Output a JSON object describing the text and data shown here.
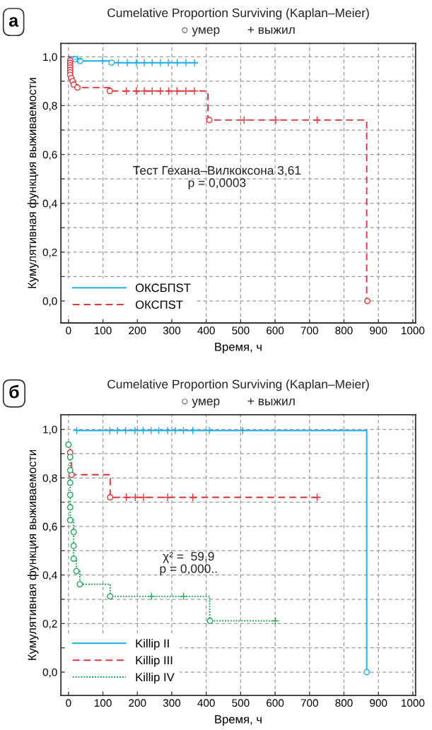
{
  "chart_data": [
    {
      "type": "step",
      "title": "Cumelative Proportion Surviving (Kaplan–Meier)",
      "subtitle": "○ умер        + выжил",
      "xlabel": "Время, ч",
      "ylabel": "Кумулятивная функция выживаемости",
      "annotations": [
        "а",
        "Тест Гехана–Вилкоксона 3,61\np = 0,0003"
      ],
      "xlim": [
        -22,
        1008
      ],
      "ylim": [
        -0.09,
        1.055
      ],
      "xticks": [
        0,
        100,
        200,
        300,
        400,
        500,
        600,
        700,
        800,
        900,
        1000
      ],
      "yticks": [
        {
          "value": 0.0,
          "label": "0,0"
        },
        {
          "value": 0.1,
          "label": null
        },
        {
          "value": 0.2,
          "label": "0,2"
        },
        {
          "value": 0.3,
          "label": null
        },
        {
          "value": 0.4,
          "label": "0,4"
        },
        {
          "value": 0.5,
          "label": null
        },
        {
          "value": 0.6,
          "label": "0,6"
        },
        {
          "value": 0.7,
          "label": null
        },
        {
          "value": 0.8,
          "label": "0,8"
        },
        {
          "value": 0.9,
          "label": null
        },
        {
          "value": 1.0,
          "label": "1,0"
        }
      ],
      "grid": true,
      "legend": "bottom left",
      "series": [
        {
          "type": "step",
          "name": "ОКСБПST",
          "color": "#1ab0e8",
          "line_style": "solid",
          "x": [
            0,
            19,
            34,
            125,
            374
          ],
          "values": [
            1.0,
            0.99,
            0.983,
            0.976,
            0.976
          ]
        },
        {
          "type": "scatter",
          "color": "#1ab0e8",
          "marker": "circle",
          "x": [
            19,
            34,
            125
          ],
          "values": [
            0.99,
            0.983,
            0.976
          ]
        },
        {
          "type": "scatter",
          "color": "#1ab0e8",
          "marker": "cross",
          "x": [
            27,
            99,
            145,
            171,
            197,
            220,
            243,
            267,
            290,
            316,
            341,
            366
          ],
          "values": [
            0.99,
            0.983,
            0.976,
            0.976,
            0.976,
            0.976,
            0.976,
            0.976,
            0.976,
            0.976,
            0.976,
            0.976
          ]
        },
        {
          "type": "step",
          "name": "ОКСПST",
          "color": "#e8333a",
          "line_style": "dashed",
          "x": [
            0,
            5,
            5,
            5,
            5,
            5,
            5,
            5,
            8,
            12,
            15,
            26,
            120,
            405,
            866
          ],
          "values": [
            1.0,
            0.985,
            0.975,
            0.965,
            0.956,
            0.946,
            0.936,
            0.926,
            0.913,
            0.9,
            0.886,
            0.874,
            0.86,
            0.741,
            0.0
          ]
        },
        {
          "type": "scatter",
          "color": "#e8333a",
          "marker": "circle",
          "x": [
            5,
            5,
            5,
            5,
            5,
            5,
            5,
            8,
            12,
            15,
            26,
            120,
            409,
            868
          ],
          "values": [
            0.985,
            0.975,
            0.965,
            0.956,
            0.946,
            0.936,
            0.926,
            0.913,
            0.9,
            0.886,
            0.874,
            0.86,
            0.741,
            0.0
          ]
        },
        {
          "type": "scatter",
          "color": "#e8333a",
          "marker": "cross",
          "x": [
            168,
            197,
            220,
            243,
            267,
            291,
            315,
            341,
            366,
            510,
            602,
            722
          ],
          "values": [
            0.86,
            0.86,
            0.86,
            0.86,
            0.86,
            0.86,
            0.86,
            0.86,
            0.86,
            0.741,
            0.741,
            0.741
          ]
        }
      ]
    },
    {
      "type": "step",
      "title": "Cumelative Proportion Surviving (Kaplan–Meier)",
      "subtitle": "○ умер        + выжил",
      "xlabel": "Время, ч",
      "ylabel": "Кумулятивная функция выживаемости",
      "annotations": [
        "б",
        "χ² =  59,9\np = 0,000.."
      ],
      "xlim": [
        -22,
        1008
      ],
      "ylim": [
        -0.096,
        1.06
      ],
      "xticks": [
        0,
        100,
        200,
        300,
        400,
        500,
        600,
        700,
        800,
        900,
        1000
      ],
      "yticks": [
        {
          "value": 0.0,
          "label": "0,0"
        },
        {
          "value": 0.1,
          "label": null
        },
        {
          "value": 0.2,
          "label": "0,2"
        },
        {
          "value": 0.3,
          "label": null
        },
        {
          "value": 0.4,
          "label": "0,4"
        },
        {
          "value": 0.5,
          "label": null
        },
        {
          "value": 0.6,
          "label": "0,6"
        },
        {
          "value": 0.7,
          "label": null
        },
        {
          "value": 0.8,
          "label": "0,8"
        },
        {
          "value": 0.9,
          "label": null
        },
        {
          "value": 1.0,
          "label": "1,0"
        }
      ],
      "grid": true,
      "legend": "bottom left",
      "series": [
        {
          "type": "step",
          "name": "Killip II",
          "color": "#1ab0e8",
          "line_style": "solid",
          "x": [
            24,
            866
          ],
          "values": [
            0.995,
            0.0
          ]
        },
        {
          "type": "scatter",
          "color": "#1ab0e8",
          "marker": "circle",
          "x": [
            866
          ],
          "values": [
            0.0
          ]
        },
        {
          "type": "scatter",
          "color": "#1ab0e8",
          "marker": "cross",
          "x": [
            24,
            120,
            142,
            166,
            193,
            217,
            240,
            262,
            288,
            310,
            334,
            361,
            409,
            506
          ],
          "values": [
            0.995,
            0.995,
            0.995,
            0.995,
            0.995,
            0.995,
            0.995,
            0.995,
            0.995,
            0.995,
            0.995,
            0.995,
            0.995,
            0.995
          ]
        },
        {
          "type": "step",
          "name": "Killip III",
          "color": "#e8333a",
          "line_style": "dashed",
          "x": [
            5,
            9,
            121,
            722
          ],
          "values": [
            0.905,
            0.813,
            0.72,
            0.72
          ]
        },
        {
          "type": "scatter",
          "color": "#e8333a",
          "marker": "circle",
          "x": [
            5,
            9,
            121
          ],
          "values": [
            0.905,
            0.813,
            0.72
          ]
        },
        {
          "type": "scatter",
          "color": "#e8333a",
          "marker": "cross",
          "x": [
            168,
            194,
            218,
            288,
            361,
            722
          ],
          "values": [
            0.72,
            0.72,
            0.72,
            0.72,
            0.72,
            0.72
          ]
        },
        {
          "type": "step",
          "name": "Killip IV",
          "color": "#1fa85a",
          "line_style": "dotted",
          "x": [
            0,
            5,
            5,
            5,
            5,
            5,
            5,
            15,
            15,
            15,
            23,
            33,
            121,
            410,
            601
          ],
          "values": [
            0.937,
            0.886,
            0.832,
            0.78,
            0.73,
            0.679,
            0.626,
            0.577,
            0.52,
            0.467,
            0.416,
            0.362,
            0.312,
            0.211,
            0.211
          ]
        },
        {
          "type": "scatter",
          "color": "#1fa85a",
          "marker": "circle",
          "x": [
            0,
            5,
            5,
            5,
            5,
            5,
            5,
            15,
            15,
            15,
            23,
            33,
            121,
            411
          ],
          "values": [
            0.937,
            0.886,
            0.832,
            0.78,
            0.73,
            0.679,
            0.626,
            0.577,
            0.52,
            0.467,
            0.416,
            0.362,
            0.312,
            0.211
          ]
        },
        {
          "type": "scatter",
          "color": "#1fa85a",
          "marker": "cross",
          "x": [
            241,
            334,
            601
          ],
          "values": [
            0.312,
            0.312,
            0.211
          ]
        }
      ]
    }
  ]
}
